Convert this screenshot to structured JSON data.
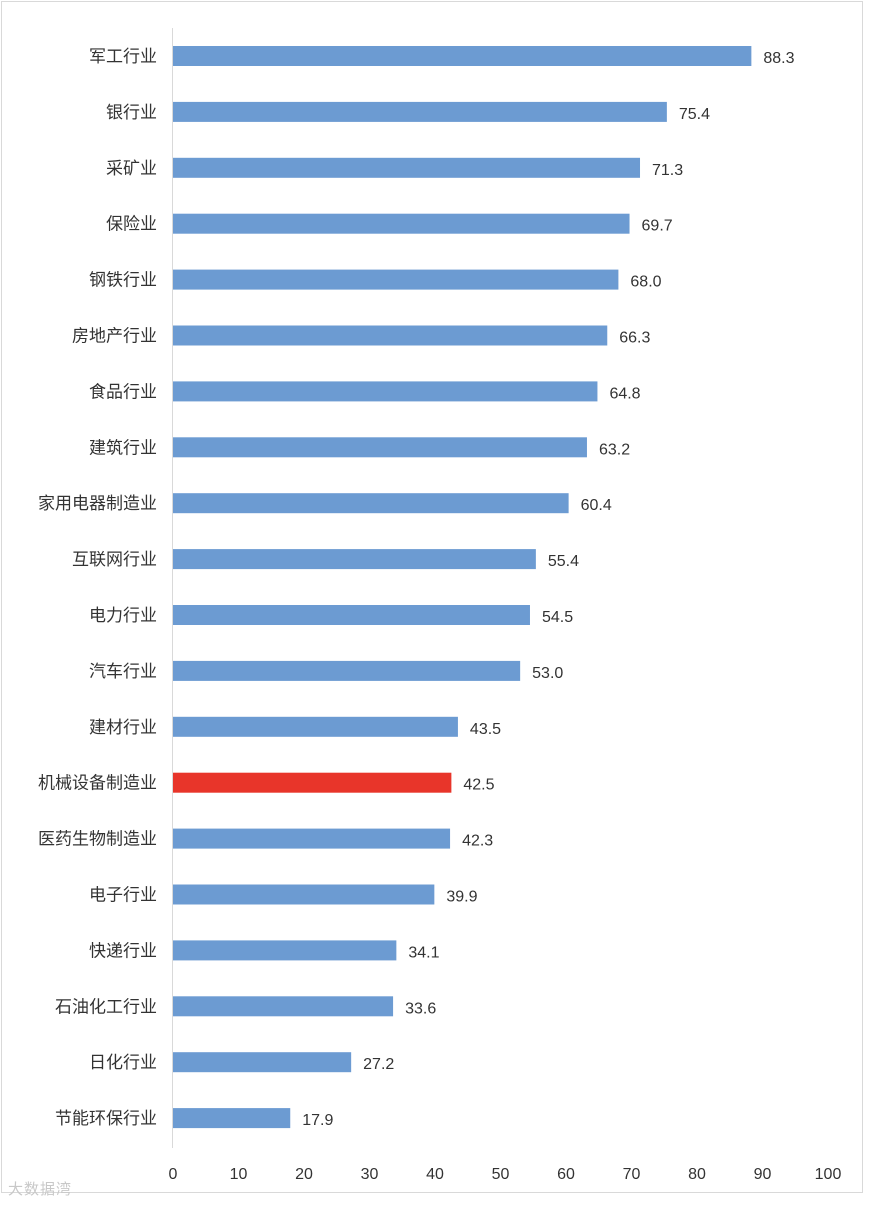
{
  "chart_data": {
    "type": "bar",
    "orientation": "horizontal",
    "title": "",
    "xlabel": "",
    "ylabel": "",
    "xlim": [
      0,
      100
    ],
    "x_ticks": [
      0,
      10,
      20,
      30,
      40,
      50,
      60,
      70,
      80,
      90,
      100
    ],
    "grid": false,
    "legend": "none",
    "categories": [
      "军工行业",
      "银行业",
      "采矿业",
      "保险业",
      "钢铁行业",
      "房地产行业",
      "食品行业",
      "建筑行业",
      "家用电器制造业",
      "互联网行业",
      "电力行业",
      "汽车行业",
      "建材行业",
      "机械设备制造业",
      "医药生物制造业",
      "电子行业",
      "快递行业",
      "石油化工行业",
      "日化行业",
      "节能环保行业"
    ],
    "values": [
      88.3,
      75.4,
      71.3,
      69.7,
      68.0,
      66.3,
      64.8,
      63.2,
      60.4,
      55.4,
      54.5,
      53.0,
      43.5,
      42.5,
      42.3,
      39.9,
      34.1,
      33.6,
      27.2,
      17.9
    ],
    "value_labels": [
      "88.3",
      "75.4",
      "71.3",
      "69.7",
      "68.0",
      "66.3",
      "64.8",
      "63.2",
      "60.4",
      "55.4",
      "54.5",
      "53.0",
      "43.5",
      "42.5",
      "42.3",
      "39.9",
      "34.1",
      "33.6",
      "27.2",
      "17.9"
    ],
    "highlight_category": "机械设备制造业",
    "colors": {
      "bar": "#6c9bd2",
      "highlight": "#e8352a",
      "axis": "#d9d9d9",
      "text": "#333333"
    }
  },
  "watermark": {
    "text": "大数据湾"
  }
}
